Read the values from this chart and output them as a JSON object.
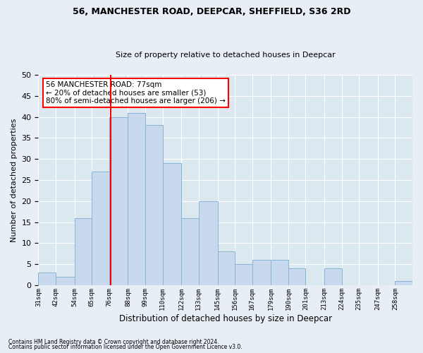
{
  "title1": "56, MANCHESTER ROAD, DEEPCAR, SHEFFIELD, S36 2RD",
  "title2": "Size of property relative to detached houses in Deepcar",
  "xlabel": "Distribution of detached houses by size in Deepcar",
  "ylabel": "Number of detached properties",
  "bin_labels": [
    "31sqm",
    "42sqm",
    "54sqm",
    "65sqm",
    "76sqm",
    "88sqm",
    "99sqm",
    "110sqm",
    "122sqm",
    "133sqm",
    "145sqm",
    "156sqm",
    "167sqm",
    "179sqm",
    "190sqm",
    "201sqm",
    "213sqm",
    "224sqm",
    "235sqm",
    "247sqm",
    "258sqm"
  ],
  "bin_edges": [
    31,
    42,
    54,
    65,
    76,
    88,
    99,
    110,
    122,
    133,
    145,
    156,
    167,
    179,
    190,
    201,
    213,
    224,
    235,
    247,
    258,
    269
  ],
  "bar_heights": [
    3,
    2,
    16,
    27,
    40,
    41,
    38,
    29,
    16,
    20,
    8,
    5,
    6,
    6,
    4,
    0,
    4,
    0,
    0,
    0,
    1
  ],
  "bar_color": "#c9d9ed",
  "bar_edgecolor": "#8ab4d4",
  "red_line_x": 77,
  "annotation_text": "56 MANCHESTER ROAD: 77sqm\n← 20% of detached houses are smaller (53)\n80% of semi-detached houses are larger (206) →",
  "annotation_box_edgecolor": "red",
  "annotation_box_facecolor": "white",
  "ylim": [
    0,
    50
  ],
  "yticks": [
    0,
    5,
    10,
    15,
    20,
    25,
    30,
    35,
    40,
    45,
    50
  ],
  "footnote1": "Contains HM Land Registry data © Crown copyright and database right 2024.",
  "footnote2": "Contains public sector information licensed under the Open Government Licence v3.0.",
  "background_color": "#e8eef5",
  "plot_background": "#dce8f0"
}
